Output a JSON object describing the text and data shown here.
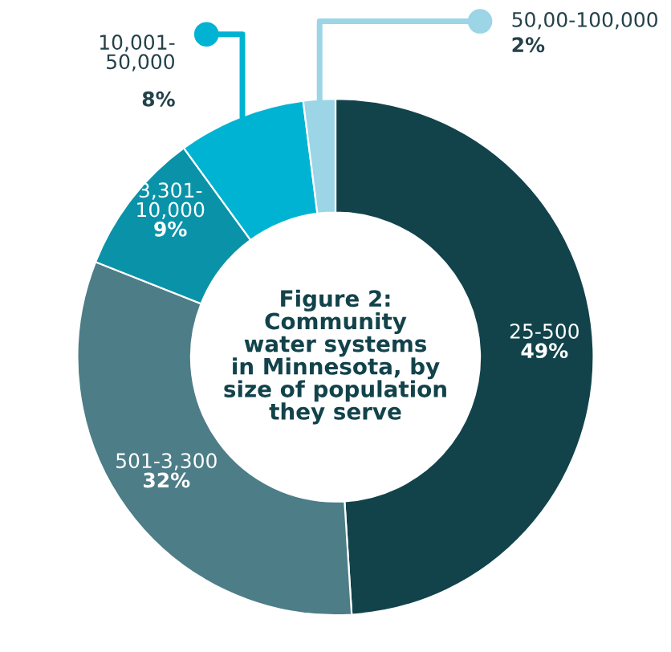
{
  "chart_data": {
    "type": "donut",
    "title": "Figure 2:\nCommunity\nwater systems\nin Minnesota, by\nsize of population\nthey serve",
    "categories": [
      "25-500",
      "501-3,300",
      "3,301-\n10,000",
      "10,001-\n50,000",
      "50,00-100,000"
    ],
    "values": [
      49,
      32,
      9,
      8,
      2
    ],
    "value_labels": [
      "49%",
      "32%",
      "9%",
      "8%",
      "2%"
    ],
    "colors": [
      "#12434b",
      "#4d7d87",
      "#0a93a8",
      "#00b3d3",
      "#9bd5e6"
    ]
  }
}
